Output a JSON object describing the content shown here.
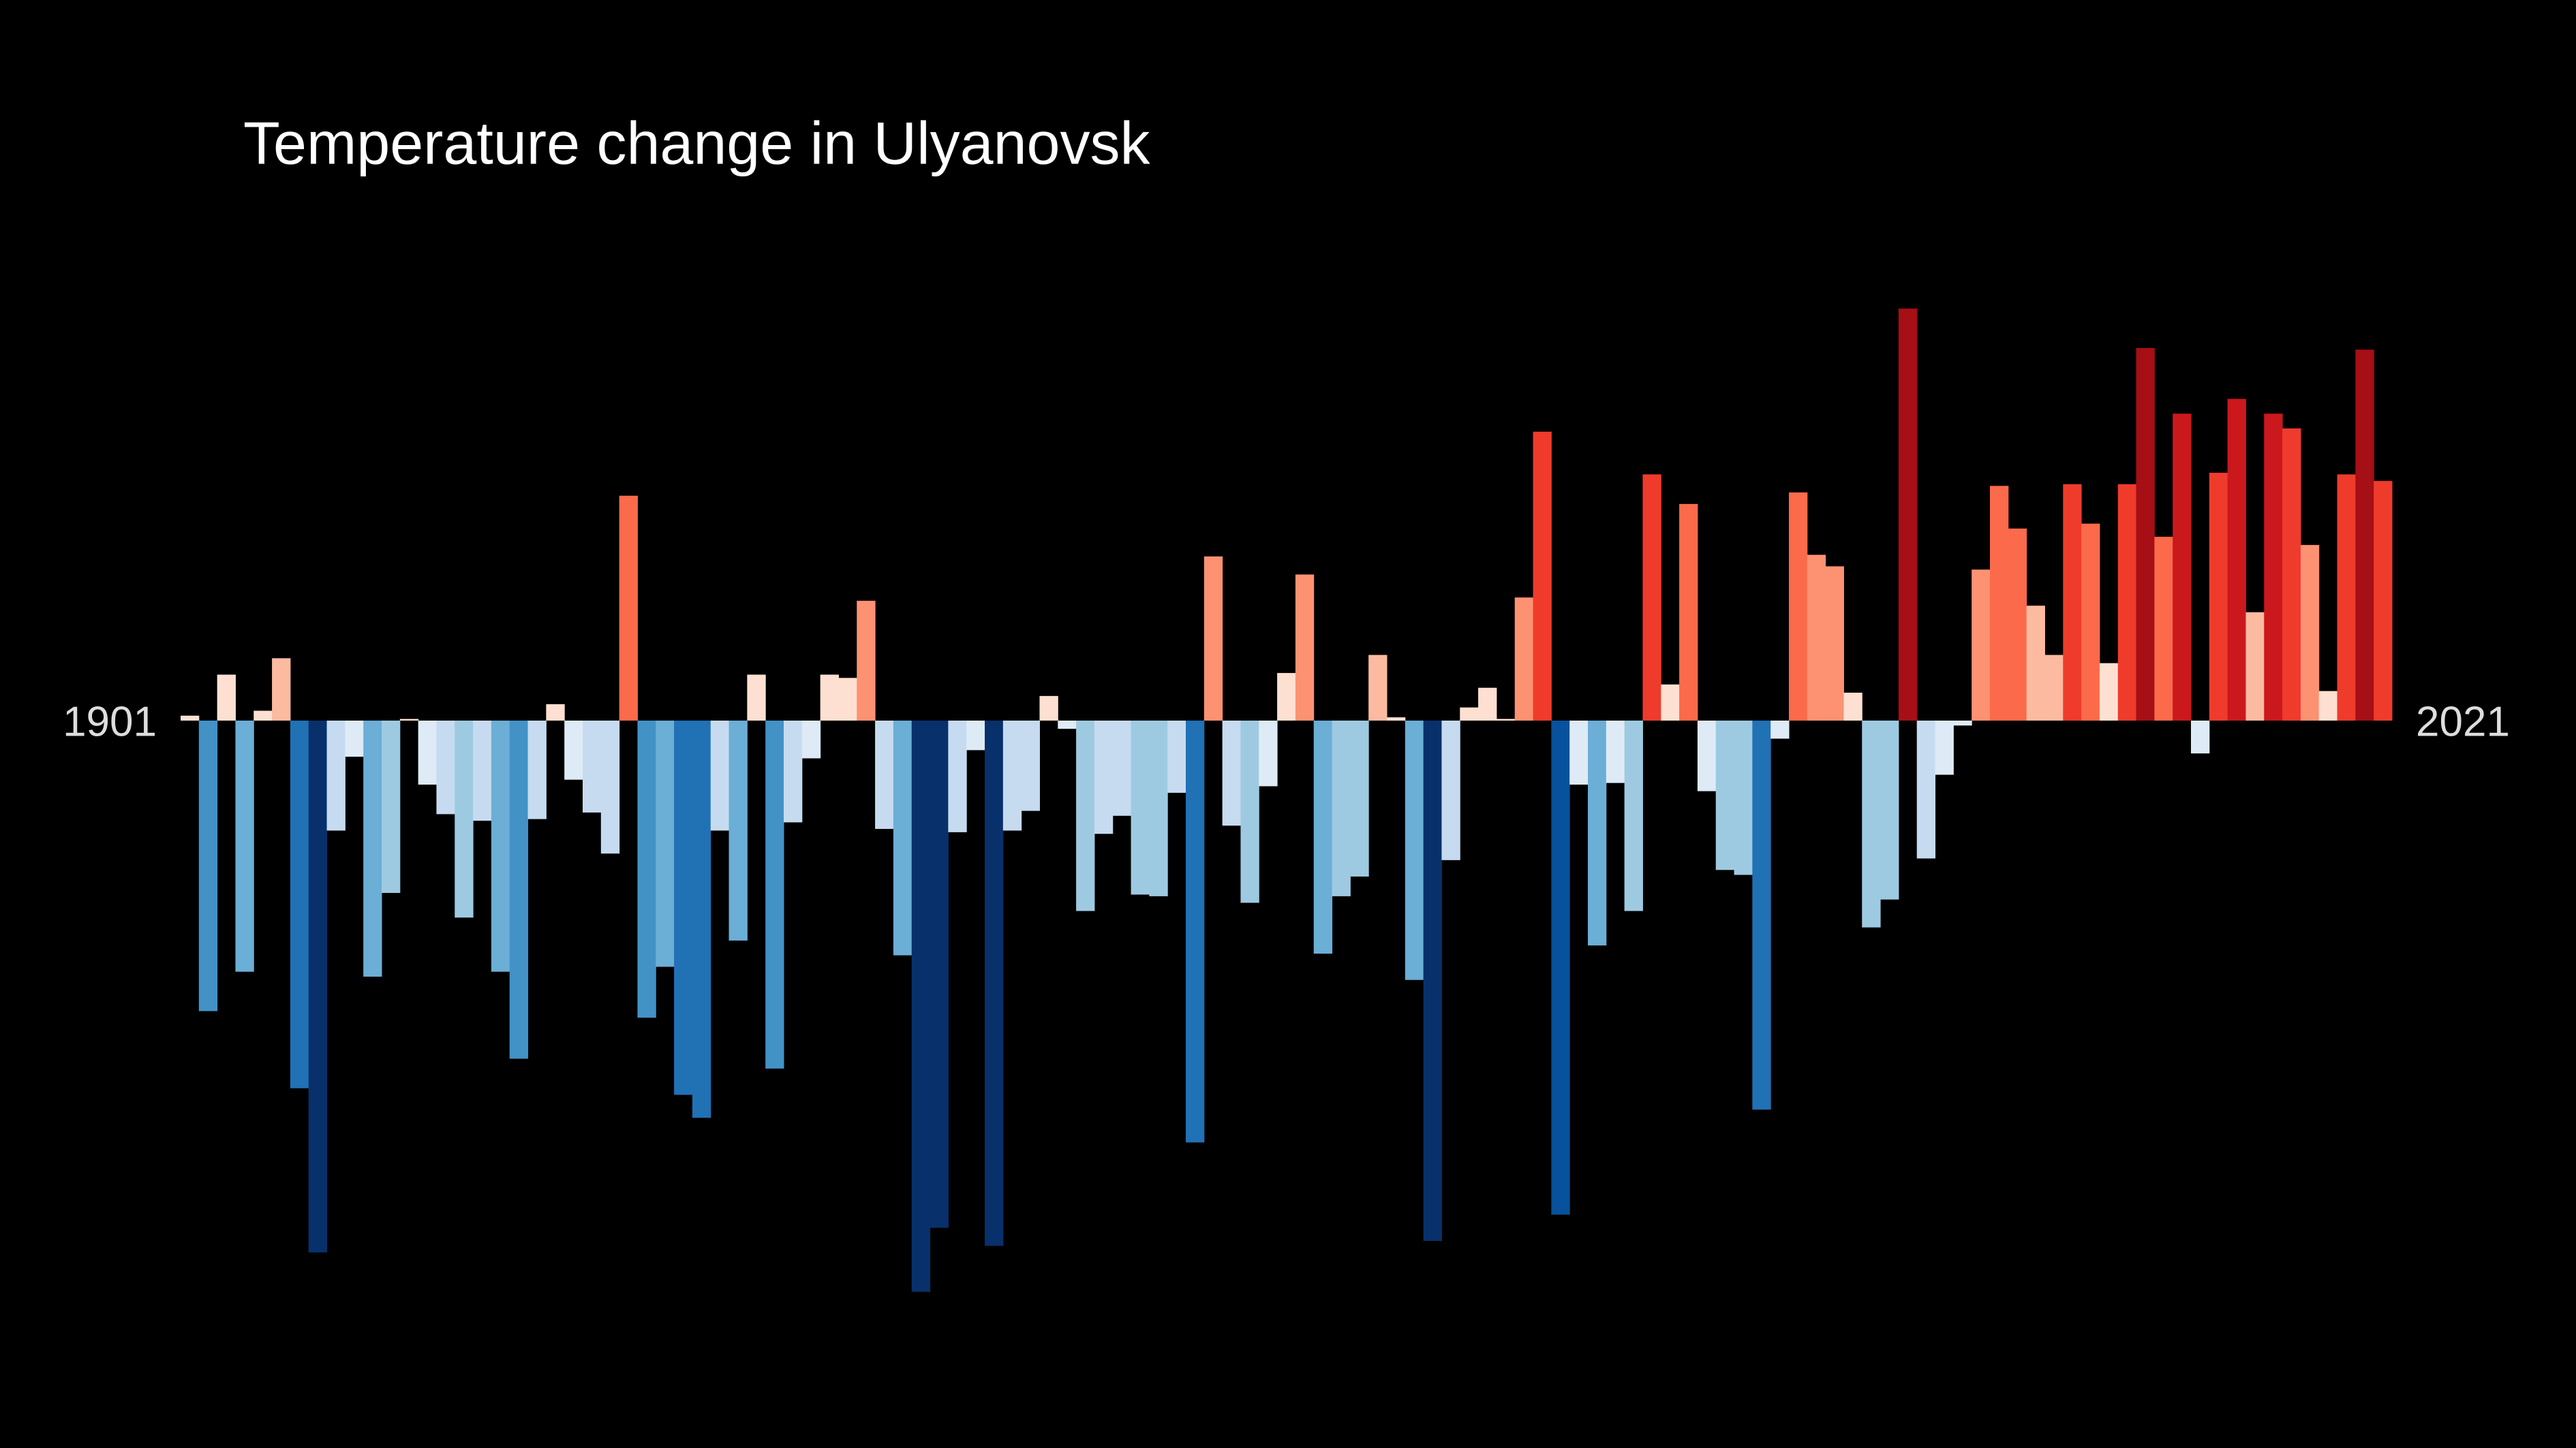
{
  "chart_data": {
    "type": "bar",
    "title": "Temperature change in Ulyanovsk",
    "categories": [
      "1901",
      null,
      null,
      null,
      null,
      null,
      null,
      null,
      null,
      null,
      null,
      null,
      null,
      null,
      null,
      null,
      null,
      null,
      null,
      null,
      null,
      null,
      null,
      null,
      null,
      null,
      null,
      null,
      null,
      null,
      null,
      null,
      null,
      null,
      null,
      null,
      null,
      null,
      null,
      null,
      null,
      null,
      null,
      null,
      null,
      null,
      null,
      null,
      null,
      null,
      null,
      null,
      null,
      null,
      null,
      null,
      null,
      null,
      null,
      null,
      null,
      null,
      null,
      null,
      null,
      null,
      null,
      null,
      null,
      null,
      null,
      null,
      null,
      null,
      null,
      null,
      null,
      null,
      null,
      null,
      null,
      null,
      null,
      null,
      null,
      null,
      null,
      null,
      null,
      null,
      null,
      null,
      null,
      null,
      null,
      null,
      null,
      null,
      null,
      null,
      null,
      null,
      null,
      null,
      null,
      null,
      null,
      null,
      null,
      null,
      null,
      null,
      null,
      null,
      null,
      null,
      null,
      null,
      null,
      null,
      "2021"
    ],
    "values": [
      0.03,
      -1.77,
      0.28,
      -1.53,
      0.06,
      0.38,
      -2.24,
      -3.24,
      -0.67,
      -0.22,
      -1.56,
      -1.05,
      0.01,
      -0.39,
      -0.57,
      -1.2,
      -0.61,
      -1.53,
      -2.06,
      -0.6,
      0.1,
      -0.36,
      -0.56,
      -0.81,
      1.37,
      -1.81,
      -1.5,
      -2.28,
      -2.42,
      -0.67,
      -1.34,
      0.28,
      -2.12,
      -0.62,
      -0.23,
      0.28,
      0.26,
      0.73,
      -0.66,
      -1.43,
      -3.48,
      -3.09,
      -0.68,
      -0.18,
      -3.2,
      -0.67,
      -0.55,
      0.15,
      -0.05,
      -1.16,
      -0.69,
      -0.58,
      -1.06,
      -1.07,
      -0.44,
      -2.57,
      1.0,
      -0.64,
      -1.11,
      -0.4,
      0.29,
      0.89,
      -1.42,
      -1.07,
      -0.95,
      0.4,
      0.02,
      -1.58,
      -3.17,
      -0.85,
      0.08,
      0.2,
      0.01,
      0.75,
      1.76,
      -3.01,
      -0.39,
      -1.37,
      -0.38,
      -1.16,
      1.5,
      0.22,
      1.32,
      -0.43,
      -0.91,
      -0.94,
      -2.37,
      -0.11,
      1.39,
      1.01,
      0.94,
      0.17,
      -1.26,
      -1.09,
      2.51,
      -0.84,
      -0.33,
      -0.03,
      0.92,
      1.43,
      1.17,
      0.7,
      0.4,
      1.44,
      1.2,
      0.35,
      1.44,
      2.27,
      1.12,
      1.87,
      -0.2,
      1.51,
      1.96,
      0.66,
      1.87,
      1.78,
      1.07,
      0.18,
      1.5,
      2.26,
      1.46
    ],
    "colors": {
      "negative": [
        "#deebf7",
        "#c6dbef",
        "#9ecae1",
        "#6baed6",
        "#4292c6",
        "#2171b5",
        "#08519c",
        "#08306b"
      ],
      "positive": [
        "#fee0d2",
        "#fcbba1",
        "#fc9272",
        "#fb6a4a",
        "#ef3b2c",
        "#cb181d",
        "#a50f15"
      ]
    }
  }
}
